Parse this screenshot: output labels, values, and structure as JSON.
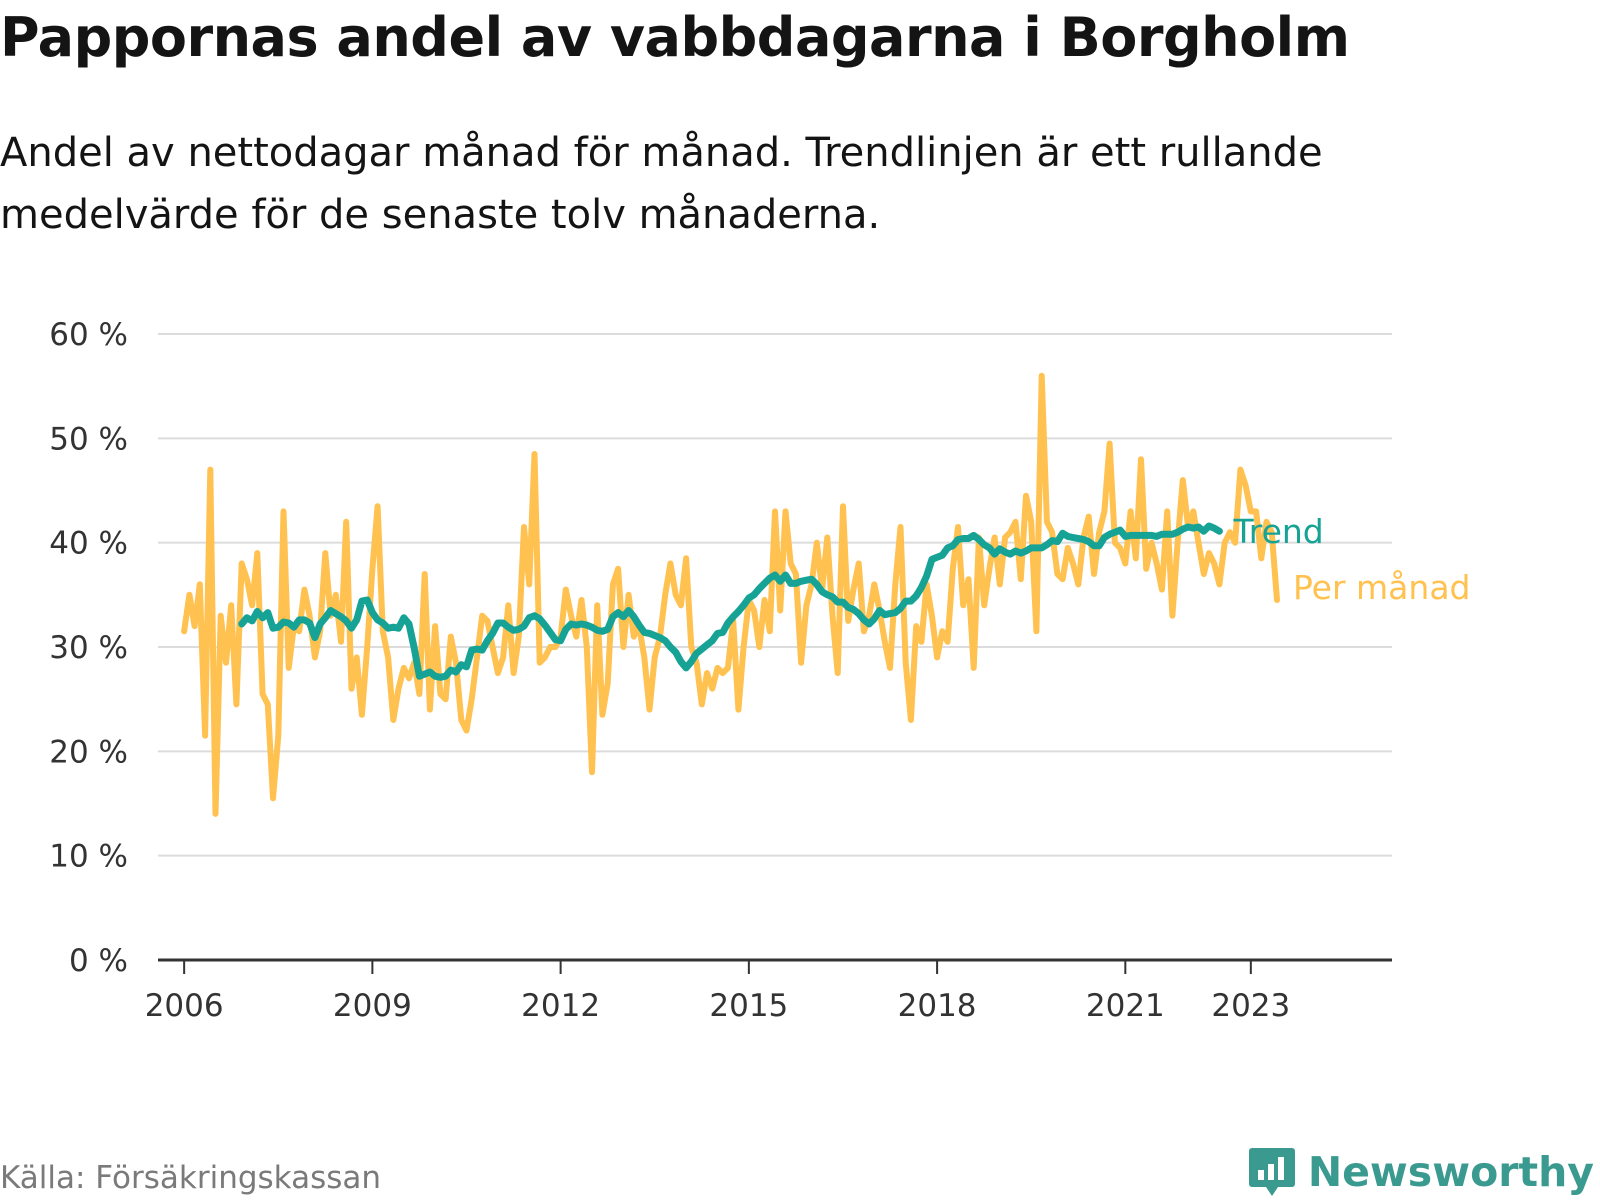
{
  "title": "Pappornas andel av vabbdagarna i Borgholm",
  "subtitle": "Andel av nettodagar månad för månad. Trendlinjen är ett rullande medelvärde för de senaste tolv månaderna.",
  "source": "Källa: Försäkringskassan",
  "brand": {
    "name": "Newsworthy",
    "icon": "bar-chart-badge-icon"
  },
  "colors": {
    "trend": "#16a395",
    "monthly": "#ffc150",
    "grid": "#dcdcdc",
    "axis": "#333333",
    "brand": "#3a9a8f"
  },
  "chart_data": {
    "type": "line",
    "ylim": [
      0,
      60
    ],
    "yticks": [
      0,
      10,
      20,
      30,
      40,
      50,
      60
    ],
    "ytick_labels": [
      "0 %",
      "10 %",
      "20 %",
      "30 %",
      "40 %",
      "50 %",
      "60 %"
    ],
    "xlim": [
      "2005-08",
      "2025-04"
    ],
    "xticks": [
      "2006-01",
      "2009-01",
      "2012-01",
      "2015-01",
      "2018-01",
      "2021-01",
      "2023-01"
    ],
    "xtick_labels": [
      "2006",
      "2009",
      "2012",
      "2015",
      "2018",
      "2021",
      "2023"
    ],
    "grid": true,
    "series": [
      {
        "name": "Per månad",
        "start": "2006-01",
        "values": [
          31.5,
          35,
          32,
          36,
          21.5,
          47,
          14,
          33,
          28.5,
          34,
          24.5,
          38,
          36.5,
          34,
          39,
          25.5,
          24.5,
          15.5,
          21.5,
          43,
          28,
          32,
          31.5,
          35.5,
          33,
          29,
          31.5,
          39,
          33,
          35,
          30.5,
          42,
          26,
          29,
          23.5,
          30,
          37.5,
          43.5,
          31.5,
          29,
          23,
          26,
          28,
          27,
          28.5,
          25.5,
          37,
          24,
          32,
          25.5,
          25,
          31,
          28.5,
          23,
          22,
          25,
          29,
          33,
          32.5,
          30,
          27.5,
          29,
          34,
          27.5,
          31,
          41.5,
          36,
          48.5,
          28.5,
          29,
          30,
          30,
          31,
          35.5,
          33,
          31,
          34.5,
          30,
          18,
          34,
          23.5,
          26.5,
          36,
          37.5,
          30,
          35,
          31,
          32,
          29,
          24,
          29,
          31,
          35,
          38,
          35,
          34,
          38.5,
          30,
          28.5,
          24.5,
          27.5,
          26,
          28,
          27.5,
          28,
          32.5,
          24,
          30,
          34.5,
          33.5,
          30,
          34.5,
          31.5,
          43,
          33.5,
          43,
          38,
          37,
          28.5,
          34,
          36,
          40,
          35.5,
          40.5,
          33,
          27.5,
          43.5,
          32.5,
          35.5,
          38,
          31.5,
          33,
          36,
          33.5,
          30.5,
          28,
          36,
          41.5,
          28.5,
          23,
          32,
          30.5,
          36,
          33,
          29,
          31.5,
          30.5,
          37.5,
          41.5,
          34,
          36.5,
          28,
          40.5,
          34,
          37.5,
          40.5,
          36,
          40.5,
          41,
          42,
          36.5,
          44.5,
          42,
          31.5,
          56,
          42,
          41,
          37,
          36.5,
          39.5,
          38,
          36,
          40.5,
          42.5,
          37,
          41,
          43,
          49.5,
          40,
          39.5,
          38,
          43,
          38.5,
          48,
          37.5,
          40,
          38,
          35.5,
          43,
          33,
          40,
          46,
          41.5,
          43,
          40,
          37,
          39,
          38,
          36,
          40,
          41,
          40,
          47,
          45.5,
          43,
          43,
          38.5,
          42,
          41,
          34.5
        ]
      },
      {
        "name": "Trend",
        "start": "2006-12",
        "values": [
          32.2,
          32.8,
          32.5,
          33.4,
          32.8,
          33.3,
          31.8,
          31.9,
          32.4,
          32.3,
          31.9,
          32.6,
          32.6,
          32.3,
          30.9,
          32.2,
          32.8,
          33.5,
          33.2,
          32.9,
          32.5,
          31.8,
          32.6,
          34.4,
          34.5,
          33.3,
          32.6,
          32.3,
          31.8,
          31.9,
          31.8,
          32.8,
          32.2,
          29.9,
          27.2,
          27.4,
          27.6,
          27.2,
          27.1,
          27.2,
          27.8,
          27.6,
          28.3,
          28.1,
          29.7,
          29.8,
          29.7,
          30.6,
          31.3,
          32.3,
          32.3,
          31.9,
          31.6,
          31.7,
          32.0,
          32.8,
          33.0,
          32.7,
          32.1,
          31.4,
          30.7,
          30.6,
          31.7,
          32.2,
          32.1,
          32.2,
          32.1,
          31.9,
          31.6,
          31.5,
          31.7,
          32.9,
          33.3,
          32.9,
          33.5,
          32.9,
          32.1,
          31.4,
          31.3,
          31.1,
          30.9,
          30.6,
          30.0,
          29.5,
          28.6,
          28.0,
          28.6,
          29.4,
          29.8,
          30.2,
          30.6,
          31.3,
          31.4,
          32.3,
          32.9,
          33.4,
          34.0,
          34.7,
          35.0,
          35.6,
          36.1,
          36.6,
          36.9,
          36.3,
          36.9,
          36.1,
          36.1,
          36.3,
          36.4,
          36.5,
          36.0,
          35.3,
          35.0,
          34.8,
          34.3,
          34.3,
          33.8,
          33.6,
          33.2,
          32.6,
          32.2,
          32.7,
          33.5,
          33.1,
          33.2,
          33.3,
          33.7,
          34.4,
          34.4,
          34.9,
          35.7,
          36.8,
          38.4,
          38.6,
          38.8,
          39.5,
          39.7,
          40.3,
          40.4,
          40.4,
          40.7,
          40.3,
          39.8,
          39.5,
          38.9,
          39.4,
          39.1,
          38.9,
          39.2,
          39.0,
          39.2,
          39.5,
          39.5,
          39.5,
          39.8,
          40.2,
          40.1,
          40.9,
          40.6,
          40.5,
          40.4,
          40.3,
          40.1,
          39.7,
          39.7,
          40.5,
          40.8,
          41.0,
          41.2,
          40.6,
          40.7,
          40.7,
          40.7,
          40.7,
          40.7,
          40.6,
          40.8,
          40.8,
          40.8,
          41.0,
          41.3,
          41.5,
          41.4,
          41.5,
          41.1,
          41.6,
          41.4,
          41.1
        ]
      }
    ]
  }
}
